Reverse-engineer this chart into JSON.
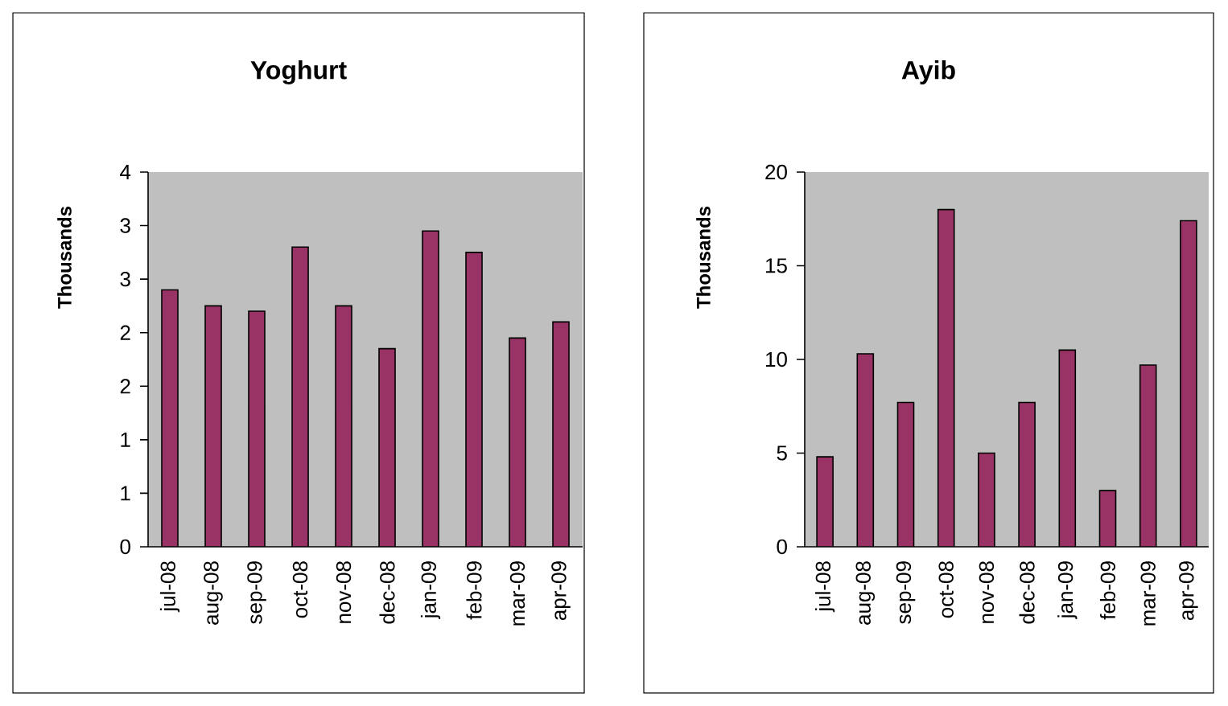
{
  "chart_data": [
    {
      "type": "bar",
      "title": "Yoghurt",
      "ylabel": "Thousands",
      "categories": [
        "jul-08",
        "aug-08",
        "sep-09",
        "oct-08",
        "nov-08",
        "dec-08",
        "jan-09",
        "feb-09",
        "mar-09",
        "apr-09"
      ],
      "values": [
        2.4,
        2.25,
        2.2,
        2.8,
        2.25,
        1.85,
        2.95,
        2.75,
        1.95,
        2.1
      ],
      "color": "#993366",
      "ylim": [
        0,
        3.5
      ],
      "yticks": [
        0,
        {
          "value": 0.5,
          "label": "1"
        },
        1,
        {
          "value": 1.5,
          "label": "2"
        },
        2,
        {
          "value": 2.5,
          "label": "3"
        },
        3,
        {
          "value": 3.5,
          "label": "4"
        }
      ],
      "grid": false
    },
    {
      "type": "bar",
      "title": "Ayib",
      "ylabel": "Thousands",
      "categories": [
        "jul-08",
        "aug-08",
        "sep-09",
        "oct-08",
        "nov-08",
        "dec-08",
        "jan-09",
        "feb-09",
        "mar-09",
        "apr-09"
      ],
      "values": [
        4.8,
        10.3,
        7.7,
        18.0,
        5.0,
        7.7,
        10.5,
        3.0,
        9.7,
        17.4
      ],
      "color": "#993366",
      "ylim": [
        0,
        20
      ],
      "yticks": [
        0,
        5,
        10,
        15,
        20
      ],
      "grid": false
    }
  ]
}
